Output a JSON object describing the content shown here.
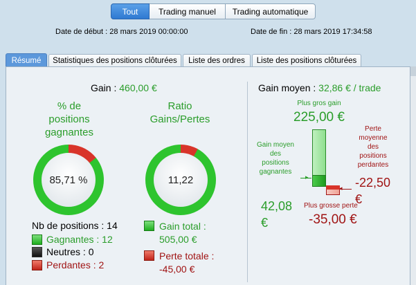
{
  "mode_tabs": {
    "all": "Tout",
    "manual": "Trading manuel",
    "auto": "Trading automatique"
  },
  "dates": {
    "start_label": "Date de début :",
    "start_value": "28 mars 2019 00:00:00",
    "end_label": "Date de fin :",
    "end_value": "28 mars 2019 17:34:58"
  },
  "view_tabs": {
    "summary": "Résumé",
    "closed_stats": "Statistiques des positions clôturées",
    "orders": "Liste des ordres",
    "closed_list": "Liste des positions clôturées"
  },
  "gain": {
    "label": "Gain :",
    "value": "460,00 €"
  },
  "win_rate": {
    "title_l1": "% de",
    "title_l2": "positions",
    "title_l3": "gagnantes",
    "value": "85,71 %",
    "fraction": 0.8571
  },
  "ratio": {
    "title_l1": "Ratio",
    "title_l2": "Gains/Pertes",
    "value": "11,22",
    "fraction": 0.9182
  },
  "positions": {
    "count_label": "Nb de positions : 14",
    "winners": "Gagnantes : 12",
    "neutral": "Neutres : 0",
    "losers": "Perdantes : 2"
  },
  "totals": {
    "gain_l1": "Gain total :",
    "gain_l2": "505,00 €",
    "loss_l1": "Perte totale :",
    "loss_l2": "-45,00 €"
  },
  "average_gain": {
    "label": "Gain moyen :",
    "value": "32,86 € / trade"
  },
  "bars": {
    "biggest_gain_label": "Plus gros gain",
    "biggest_gain_value": "225,00 €",
    "avg_win_l1": "Gain moyen",
    "avg_win_l2": "des",
    "avg_win_l3": "positions",
    "avg_win_l4": "gagnantes",
    "avg_win_value_l1": "42,08",
    "avg_win_value_l2": "€",
    "avg_loss_l1": "Perte",
    "avg_loss_l2": "moyenne",
    "avg_loss_l3": "des",
    "avg_loss_l4": "positions",
    "avg_loss_l5": "perdantes",
    "avg_loss_value_l1": "-22,50",
    "avg_loss_value_l2": "€",
    "biggest_loss_label": "Plus grosse perte",
    "biggest_loss_value": "-35,00 €"
  },
  "colors": {
    "green": "#2a9d2a",
    "red": "#a01414",
    "accent": "#2f79d1"
  }
}
